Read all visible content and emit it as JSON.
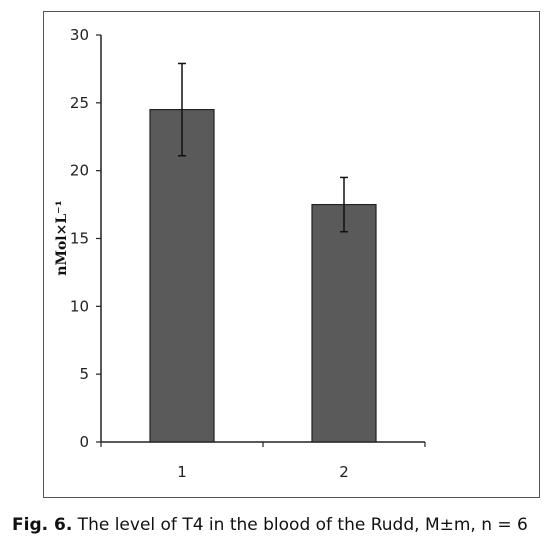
{
  "chart_data": {
    "type": "bar",
    "categories": [
      "1",
      "2"
    ],
    "values": [
      24.5,
      17.5
    ],
    "errors": [
      3.4,
      2.0
    ],
    "ylabel": "nMol×L⁻¹",
    "ylim": [
      0,
      30
    ],
    "yticks": [
      0,
      5,
      10,
      15,
      20,
      25,
      30
    ],
    "grid": false,
    "bar_color": "#5a5a5a",
    "bar_edge_color": "#222222"
  },
  "caption": {
    "label": "Fig. 6.",
    "text": " The level of T4 in the blood of the Rudd, M±m, n = 6"
  }
}
